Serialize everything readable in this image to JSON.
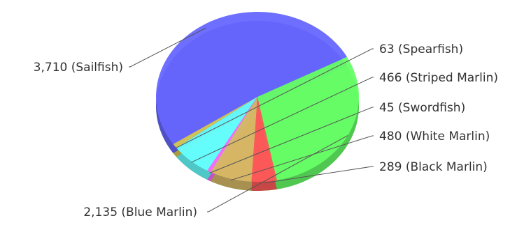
{
  "chart_data": {
    "type": "pie",
    "title": "",
    "slices": [
      {
        "label": "Sailfish",
        "value": 3710,
        "text": "3,710 (Sailfish)",
        "color": "#6666ff"
      },
      {
        "label": "Spearfish",
        "value": 63,
        "text": "63 (Spearfish)",
        "color": "#d8c850"
      },
      {
        "label": "Striped Marlin",
        "value": 466,
        "text": "466 (Striped Marlin)",
        "color": "#66ffff"
      },
      {
        "label": "Swordfish",
        "value": 45,
        "text": "45 (Swordfish)",
        "color": "#ff66ff"
      },
      {
        "label": "White Marlin",
        "value": 480,
        "text": "480 (White Marlin)",
        "color": "#d8b866"
      },
      {
        "label": "Black Marlin",
        "value": 289,
        "text": "289 (Black Marlin)",
        "color": "#ff5a5a"
      },
      {
        "label": "Blue Marlin",
        "value": 2135,
        "text": "2,135 (Blue Marlin)",
        "color": "#66ff66"
      }
    ],
    "legend": "none",
    "style": "3d-tilted"
  }
}
